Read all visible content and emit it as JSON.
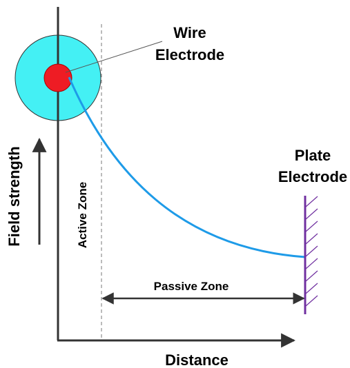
{
  "wire_electrode": {
    "line1": "Wire",
    "line2": "Electrode"
  },
  "plate_electrode": {
    "line1": "Plate",
    "line2": "Electrode"
  },
  "y_axis_label": "Field strength",
  "x_axis_label": "Distance",
  "active_zone": "Active Zone",
  "passive_zone": "Passive Zone"
}
